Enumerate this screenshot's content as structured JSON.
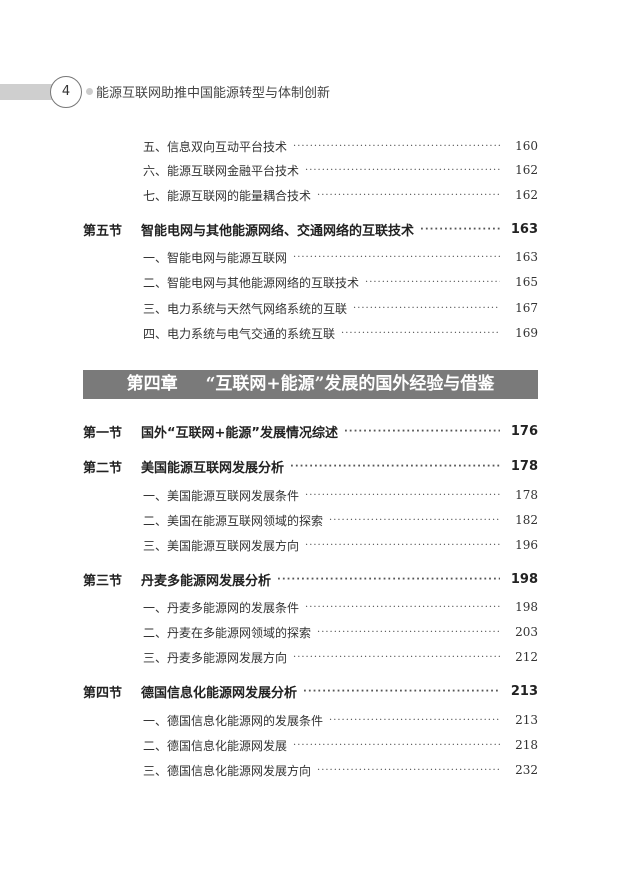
{
  "header": {
    "page_number": "4",
    "book_title": "能源互联网助推中国能源转型与体制创新"
  },
  "entries_top": [
    {
      "type": "item",
      "label": "五、信息双向互动平台技术",
      "page": "160"
    },
    {
      "type": "item",
      "label": "六、能源互联网金融平台技术",
      "page": "162"
    },
    {
      "type": "item",
      "label": "七、能源互联网的能量耦合技术",
      "page": "162"
    },
    {
      "type": "section",
      "num": "第五节",
      "label": "智能电网与其他能源网络、交通网络的互联技术",
      "page": "163"
    },
    {
      "type": "item",
      "label": "一、智能电网与能源互联网",
      "page": "163"
    },
    {
      "type": "item",
      "label": "二、智能电网与其他能源网络的互联技术",
      "page": "165"
    },
    {
      "type": "item",
      "label": "三、电力系统与天然气网络系统的互联",
      "page": "167"
    },
    {
      "type": "item",
      "label": "四、电力系统与电气交通的系统互联",
      "page": "169"
    }
  ],
  "chapter": {
    "number": "第四章",
    "title": "“互联网+能源”发展的国外经验与借鉴"
  },
  "entries_bottom": [
    {
      "type": "section",
      "num": "第一节",
      "label": "国外“互联网+能源”发展情况综述",
      "page": "176"
    },
    {
      "type": "section",
      "num": "第二节",
      "label": "美国能源互联网发展分析",
      "page": "178"
    },
    {
      "type": "item",
      "label": "一、美国能源互联网发展条件",
      "page": "178"
    },
    {
      "type": "item",
      "label": "二、美国在能源互联网领域的探索",
      "page": "182"
    },
    {
      "type": "item",
      "label": "三、美国能源互联网发展方向",
      "page": "196"
    },
    {
      "type": "section",
      "num": "第三节",
      "label": "丹麦多能源网发展分析",
      "page": "198"
    },
    {
      "type": "item",
      "label": "一、丹麦多能源网的发展条件",
      "page": "198"
    },
    {
      "type": "item",
      "label": "二、丹麦在多能源网领域的探索",
      "page": "203"
    },
    {
      "type": "item",
      "label": "三、丹麦多能源网发展方向",
      "page": "212"
    },
    {
      "type": "section",
      "num": "第四节",
      "label": "德国信息化能源网发展分析",
      "page": "213"
    },
    {
      "type": "item",
      "label": "一、德国信息化能源网的发展条件",
      "page": "213"
    },
    {
      "type": "item",
      "label": "二、德国信息化能源网发展",
      "page": "218"
    },
    {
      "type": "item",
      "label": "三、德国信息化能源网发展方向",
      "page": "232"
    }
  ]
}
